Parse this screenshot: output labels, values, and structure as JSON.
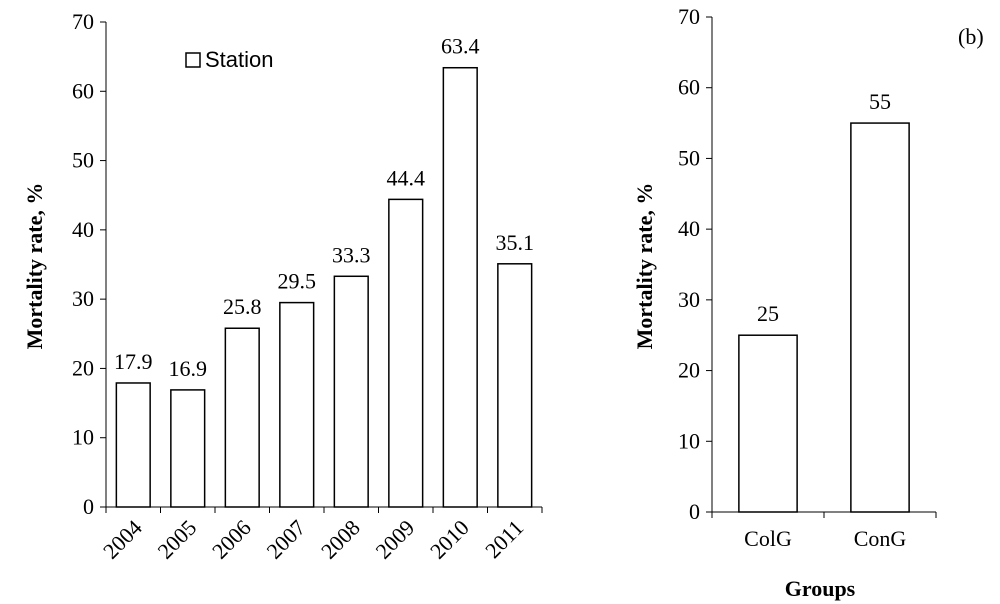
{
  "colors": {
    "bar_fill": "#ffffff",
    "bar_stroke": "#000000",
    "axis": "#000000"
  },
  "chart_data": [
    {
      "type": "bar",
      "title": "",
      "xlabel": "",
      "ylabel": "Mortality rate, %",
      "ylim": [
        0,
        70
      ],
      "yticks": [
        0,
        10,
        20,
        30,
        40,
        50,
        60,
        70
      ],
      "categories": [
        "2004",
        "2005",
        "2006",
        "2007",
        "2008",
        "2009",
        "2010",
        "2011"
      ],
      "series": [
        {
          "name": "Station",
          "values": [
            17.9,
            16.9,
            25.8,
            29.5,
            33.3,
            44.4,
            63.4,
            35.1
          ]
        }
      ],
      "data_labels": [
        "17.9",
        "16.9",
        "25.8",
        "29.5",
        "33.3",
        "44.4",
        "63.4",
        "35.1"
      ],
      "legend": {
        "entries": [
          "Station"
        ],
        "placement": "top-left"
      },
      "grid": false
    },
    {
      "type": "bar",
      "title": "",
      "panel_label": "(b)",
      "xlabel": "Groups",
      "ylabel": "Mortality rate,  %",
      "ylim": [
        0,
        70
      ],
      "yticks": [
        0,
        10,
        20,
        30,
        40,
        50,
        60,
        70
      ],
      "categories": [
        "ColG",
        "ConG"
      ],
      "values": [
        25,
        55
      ],
      "data_labels": [
        "25",
        "55"
      ],
      "grid": false
    }
  ]
}
